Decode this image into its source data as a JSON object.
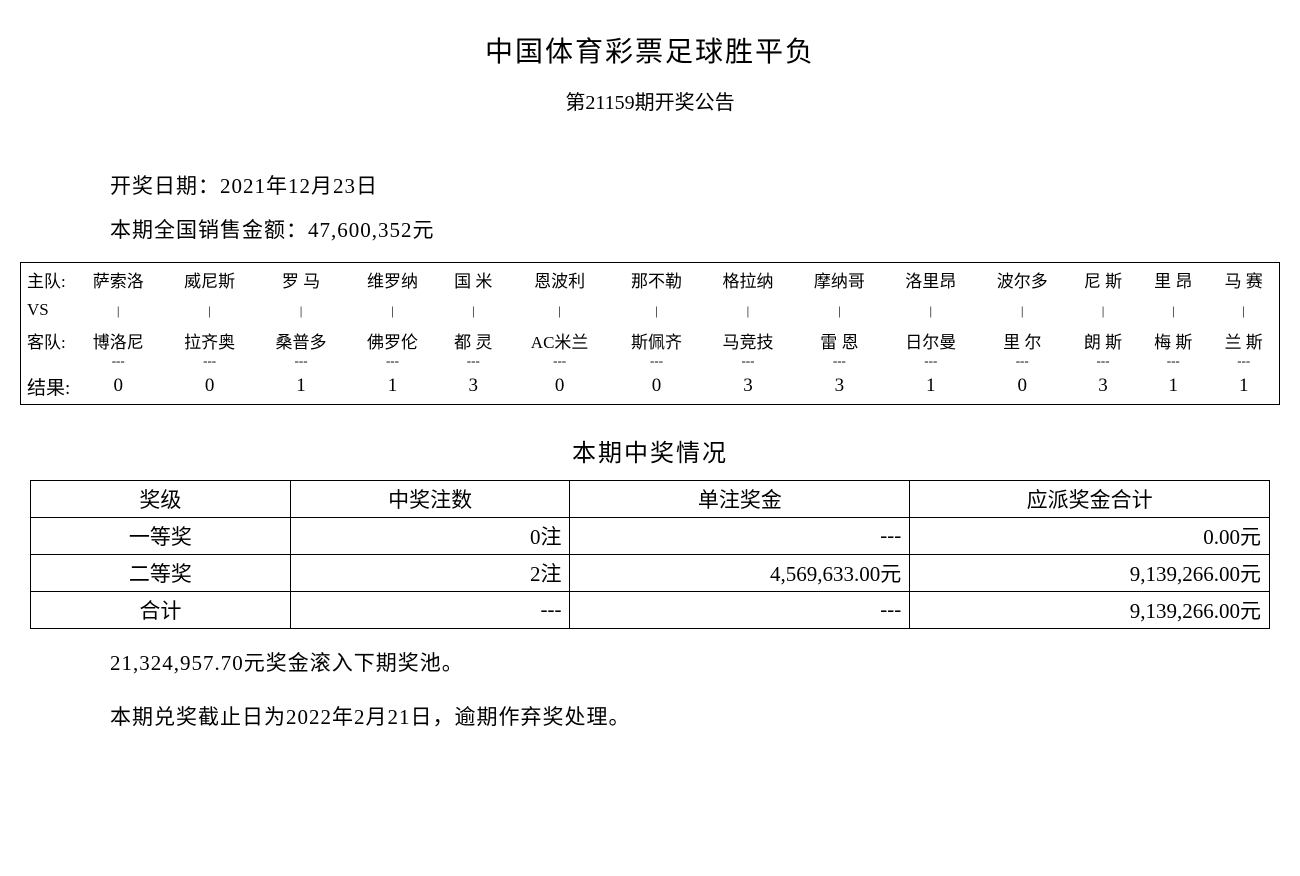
{
  "header": {
    "title": "中国体育彩票足球胜平负",
    "subtitle": "第21159期开奖公告"
  },
  "info": {
    "draw_date_label": "开奖日期：",
    "draw_date": "2021年12月23日",
    "sales_label": "本期全国销售金额：",
    "sales_amount": "47,600,352元"
  },
  "matches": {
    "home_label": "主队:",
    "vs_label": "VS",
    "away_label": "客队:",
    "result_label": "结果:",
    "home": [
      "萨索洛",
      "威尼斯",
      "罗 马",
      "维罗纳",
      "国 米",
      "恩波利",
      "那不勒",
      "格拉纳",
      "摩纳哥",
      "洛里昂",
      "波尔多",
      "尼 斯",
      "里 昂",
      "马 赛"
    ],
    "away": [
      "博洛尼",
      "拉齐奥",
      "桑普多",
      "佛罗伦",
      "都 灵",
      "AC米兰",
      "斯佩齐",
      "马竞技",
      "雷 恩",
      "日尔曼",
      "里 尔",
      "朗 斯",
      "梅 斯",
      "兰 斯"
    ],
    "results": [
      "0",
      "0",
      "1",
      "1",
      "3",
      "0",
      "0",
      "3",
      "3",
      "1",
      "0",
      "3",
      "1",
      "1"
    ]
  },
  "prize_section": {
    "title": "本期中奖情况",
    "columns": [
      "奖级",
      "中奖注数",
      "单注奖金",
      "应派奖金合计"
    ],
    "rows": [
      {
        "level": "一等奖",
        "count": "0注",
        "unit": "---",
        "total": "0.00元"
      },
      {
        "level": "二等奖",
        "count": "2注",
        "unit": "4,569,633.00元",
        "total": "9,139,266.00元"
      },
      {
        "level": "合计",
        "count": "---",
        "unit": "---",
        "total": "9,139,266.00元"
      }
    ]
  },
  "footer": {
    "rollover": "21,324,957.70元奖金滚入下期奖池。",
    "deadline": "本期兑奖截止日为2022年2月21日，逾期作弃奖处理。"
  },
  "style": {
    "text_color": "#000000",
    "background_color": "#ffffff",
    "border_color": "#000000",
    "font_family": "SimSun",
    "title_fontsize": 28,
    "subtitle_fontsize": 20,
    "body_fontsize": 21,
    "match_fontsize": 17,
    "border_width": 1.5
  }
}
